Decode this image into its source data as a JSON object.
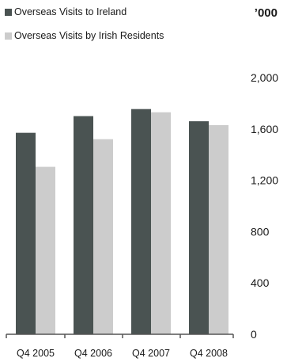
{
  "chart_data": {
    "type": "bar",
    "unit_label": "’000",
    "categories": [
      "Q4 2005",
      "Q4 2006",
      "Q4 2007",
      "Q4 2008"
    ],
    "series": [
      {
        "name": "Overseas Visits to Ireland",
        "color": "#4a5352",
        "values": [
          1570,
          1700,
          1755,
          1660
        ]
      },
      {
        "name": "Overseas Visits by Irish Residents",
        "color": "#cccccc",
        "values": [
          1305,
          1520,
          1730,
          1630
        ]
      }
    ],
    "y_ticks": [
      "0",
      "400",
      "800",
      "1,200",
      "1,600",
      "2,000"
    ],
    "y_tick_values": [
      0,
      400,
      800,
      1200,
      1600,
      2000
    ],
    "ylim": [
      0,
      2000
    ],
    "grid": false,
    "legend_position": "top-left"
  }
}
